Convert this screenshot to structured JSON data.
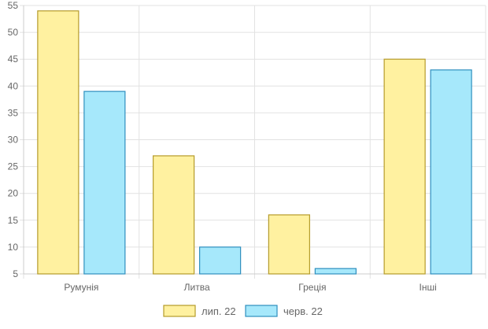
{
  "chart_data": {
    "type": "bar",
    "categories": [
      "Румунія",
      "Литва",
      "Греція",
      "Інші"
    ],
    "series": [
      {
        "name": "лип. 22",
        "values": [
          54,
          27,
          16,
          45
        ],
        "fill": "#fff1a0",
        "stroke": "#b59b2a"
      },
      {
        "name": "черв. 22",
        "values": [
          39,
          10,
          6,
          43
        ],
        "fill": "#a6e8fb",
        "stroke": "#2f8fbf"
      }
    ],
    "ylim": [
      5,
      55
    ],
    "yticks": [
      5,
      10,
      15,
      20,
      25,
      30,
      35,
      40,
      45,
      50,
      55
    ],
    "grid": true,
    "legend_position": "bottom"
  }
}
